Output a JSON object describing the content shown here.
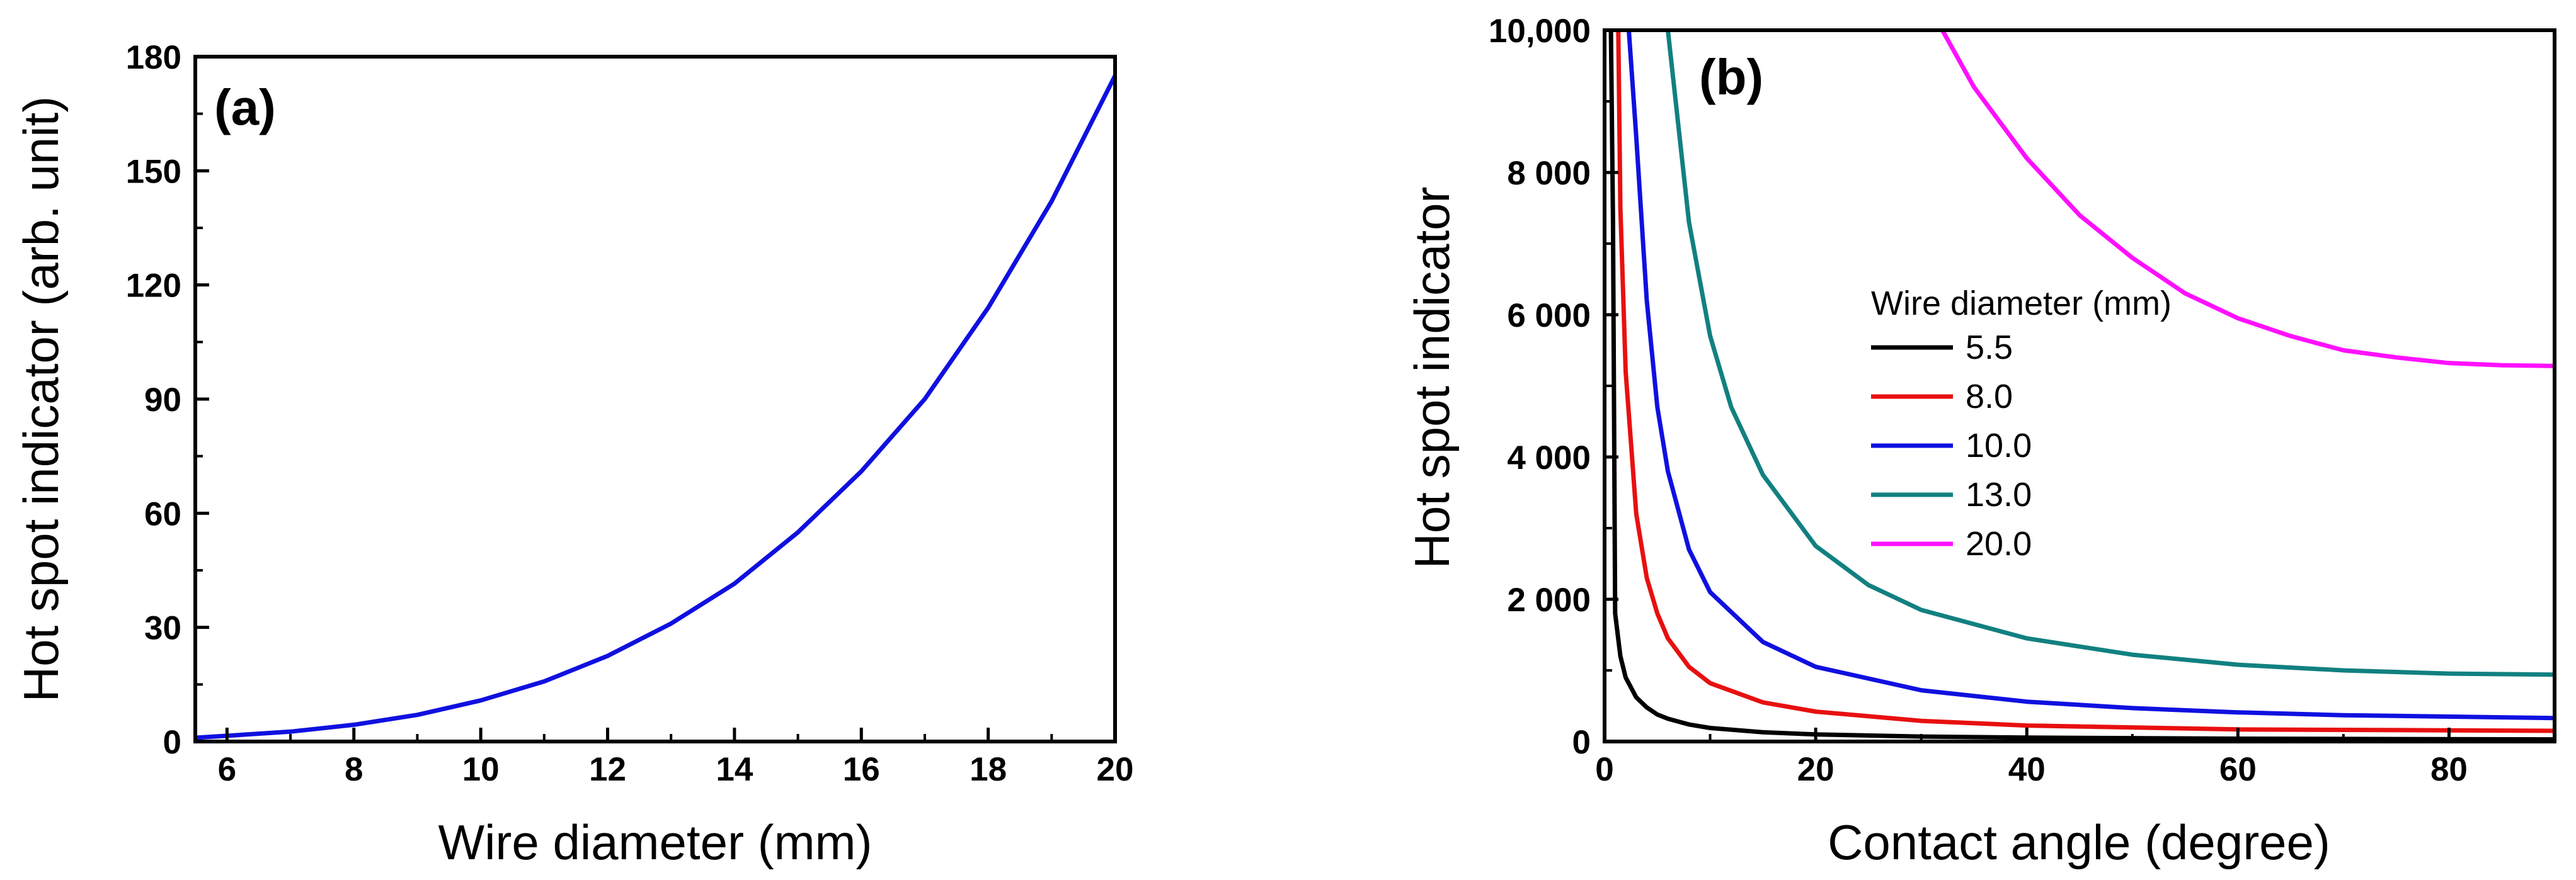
{
  "chart_data": [
    {
      "type": "line",
      "panel_label": "(a)",
      "xlabel": "Wire diameter (mm)",
      "ylabel": "Hot spot indicator (arb. unit)",
      "xlim": [
        5.5,
        20
      ],
      "ylim": [
        0,
        180
      ],
      "x_ticks": [
        6,
        8,
        10,
        12,
        14,
        16,
        18,
        20
      ],
      "x_tick_labels": [
        "6",
        "8",
        "10",
        "12",
        "14",
        "16",
        "18",
        "20"
      ],
      "y_ticks": [
        0,
        30,
        60,
        90,
        120,
        150,
        180
      ],
      "y_tick_labels": [
        "0",
        "30",
        "60",
        "90",
        "120",
        "150",
        "180"
      ],
      "grid": false,
      "series": [
        {
          "name": "hot spot indicator",
          "color": "#1010e0",
          "x": [
            5.5,
            6,
            7,
            8,
            9,
            10,
            11,
            12,
            13,
            14,
            15,
            16,
            17,
            18,
            19,
            20
          ],
          "y": [
            1,
            1.5,
            2.6,
            4.4,
            7,
            10.8,
            15.8,
            22.5,
            31,
            41.5,
            55,
            71,
            90,
            114,
            142,
            175
          ]
        }
      ]
    },
    {
      "type": "line",
      "panel_label": "(b)",
      "xlabel": "Contact angle (degree)",
      "ylabel": "Hot spot indicator",
      "xlim": [
        0,
        90
      ],
      "ylim": [
        0,
        10000
      ],
      "x_ticks": [
        0,
        20,
        40,
        60,
        80
      ],
      "x_tick_labels": [
        "0",
        "20",
        "40",
        "60",
        "80"
      ],
      "y_ticks": [
        0,
        2000,
        4000,
        6000,
        8000,
        10000
      ],
      "y_tick_labels": [
        "0",
        "2 000",
        "4 000",
        "6 000",
        "8 000",
        "10,000"
      ],
      "grid": false,
      "legend": {
        "title": "Wire diameter (mm)",
        "placement": "center-right",
        "entries": [
          "5.5",
          "8.0",
          "10.0",
          "13.0",
          "20.0"
        ]
      },
      "series": [
        {
          "name": "5.5",
          "color": "#000000",
          "x": [
            0.6,
            0.8,
            1,
            1.5,
            2,
            3,
            4,
            5,
            6,
            8,
            10,
            15,
            20,
            30,
            40,
            60,
            90
          ],
          "y": [
            10000,
            7300,
            1800,
            1200,
            900,
            620,
            480,
            380,
            320,
            240,
            190,
            130,
            100,
            70,
            55,
            40,
            30
          ]
        },
        {
          "name": "8.0",
          "color": "#e81010",
          "x": [
            1.3,
            1.5,
            2,
            3,
            4,
            5,
            6,
            8,
            10,
            15,
            20,
            30,
            40,
            60,
            90
          ],
          "y": [
            10000,
            7500,
            5200,
            3200,
            2300,
            1800,
            1450,
            1050,
            820,
            550,
            420,
            290,
            225,
            170,
            150
          ]
        },
        {
          "name": "10.0",
          "color": "#1010e0",
          "x": [
            2.3,
            3,
            4,
            5,
            6,
            8,
            10,
            15,
            20,
            30,
            40,
            50,
            60,
            70,
            90
          ],
          "y": [
            10000,
            8500,
            6200,
            4700,
            3800,
            2700,
            2100,
            1400,
            1050,
            720,
            560,
            470,
            410,
            370,
            330
          ]
        },
        {
          "name": "13.0",
          "color": "#128080",
          "x": [
            6,
            8,
            10,
            12,
            15,
            20,
            25,
            30,
            40,
            50,
            60,
            70,
            80,
            90
          ],
          "y": [
            10000,
            7300,
            5700,
            4700,
            3750,
            2750,
            2200,
            1850,
            1450,
            1220,
            1080,
            1000,
            955,
            940
          ]
        },
        {
          "name": "20.0",
          "color": "#ff10ff",
          "x": [
            32,
            35,
            40,
            45,
            50,
            55,
            60,
            65,
            70,
            75,
            80,
            85,
            90
          ],
          "y": [
            10000,
            9200,
            8200,
            7400,
            6800,
            6300,
            5950,
            5700,
            5500,
            5400,
            5320,
            5290,
            5280
          ]
        }
      ]
    }
  ]
}
